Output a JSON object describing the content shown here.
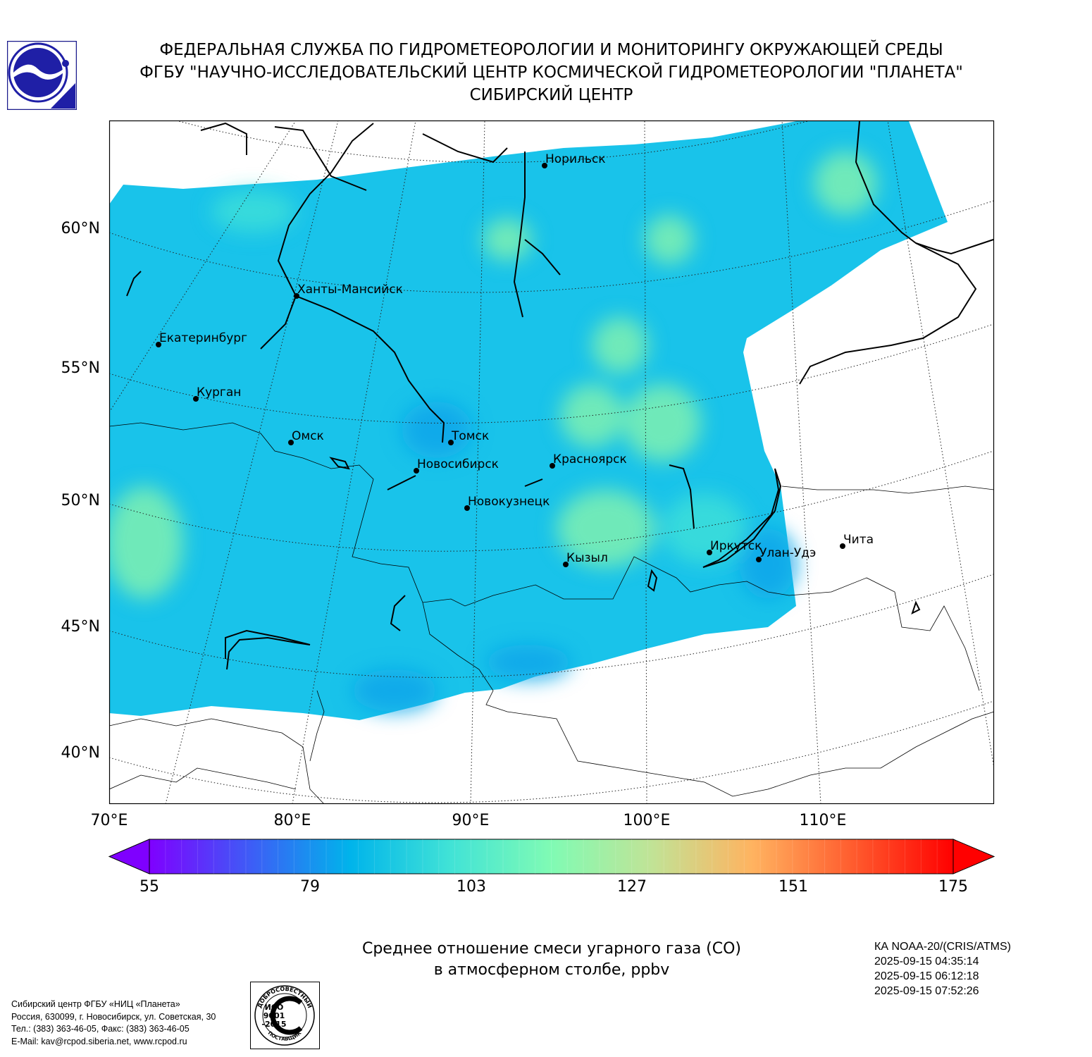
{
  "header": {
    "line1": "ФЕДЕРАЛЬНАЯ СЛУЖБА ПО ГИДРОМЕТЕОРОЛОГИИ И МОНИТОРИНГУ ОКРУЖАЮЩЕЙ СРЕДЫ",
    "line2": "ФГБУ \"НАУЧНО-ИССЛЕДОВАТЕЛЬСКИЙ ЦЕНТР КОСМИЧЕСКОЙ ГИДРОМЕТЕОРОЛОГИИ \"ПЛАНЕТА\"",
    "line3": "СИБИРСКИЙ ЦЕНТР"
  },
  "map": {
    "lat_labels": [
      "60°N",
      "55°N",
      "50°N",
      "45°N",
      "40°N"
    ],
    "lon_labels": [
      "70°E",
      "80°E",
      "90°E",
      "100°E",
      "110°E"
    ],
    "cities": [
      {
        "name": "Норильск"
      },
      {
        "name": "Ханты-Мансийск"
      },
      {
        "name": "Екатеринбург"
      },
      {
        "name": "Курган"
      },
      {
        "name": "Омск"
      },
      {
        "name": "Томск"
      },
      {
        "name": "Новосибирск"
      },
      {
        "name": "Красноярск"
      },
      {
        "name": "Новокузнецк"
      },
      {
        "name": "Кызыл"
      },
      {
        "name": "Иркутск"
      },
      {
        "name": "Улан-Удэ"
      },
      {
        "name": "Чита"
      }
    ],
    "colors": {
      "field_main": "#19c3ea",
      "field_light": "#3fe0d8",
      "field_green": "#7ff0b0",
      "field_dark": "#12a6ea"
    }
  },
  "colorbar": {
    "ticks": [
      "55",
      "79",
      "103",
      "127",
      "151",
      "175"
    ],
    "min": 55,
    "max": 175,
    "colors": [
      "#7f00ff",
      "#3e5cf6",
      "#00b4eb",
      "#41e3d6",
      "#80fbb4",
      "#c1e396",
      "#ffb360",
      "#ff5c2e",
      "#ff0000"
    ]
  },
  "title": {
    "line1": "Среднее отношение смеси угарного газа (CO)",
    "line2": "в атмосферном столбе, ppbv"
  },
  "satellite": {
    "name": "КА NOAA-20/(CRIS/ATMS)",
    "time1": "2025-09-15 04:35:14",
    "time2": "2025-09-15 06:12:18",
    "time3": "2025-09-15 07:52:26"
  },
  "contacts": {
    "line1": "Сибирский центр ФГБУ «НИЦ «Планета»",
    "line2": "Россия, 630099, г. Новосибирск, ул. Советская, 30",
    "line3": "Тел.: (383) 363-46-05, Факс: (383) 363-46-05",
    "line4": "E-Mail: kav@rcpod.siberia.net, www.rcpod.ru"
  },
  "iso_badge": {
    "top_text": "ДОБРОСОВЕСТНЫЙ",
    "std1": "ИСО",
    "std2": "9001",
    "std3": "-2015",
    "bottom_text": "ПОСТАВЩИК"
  }
}
